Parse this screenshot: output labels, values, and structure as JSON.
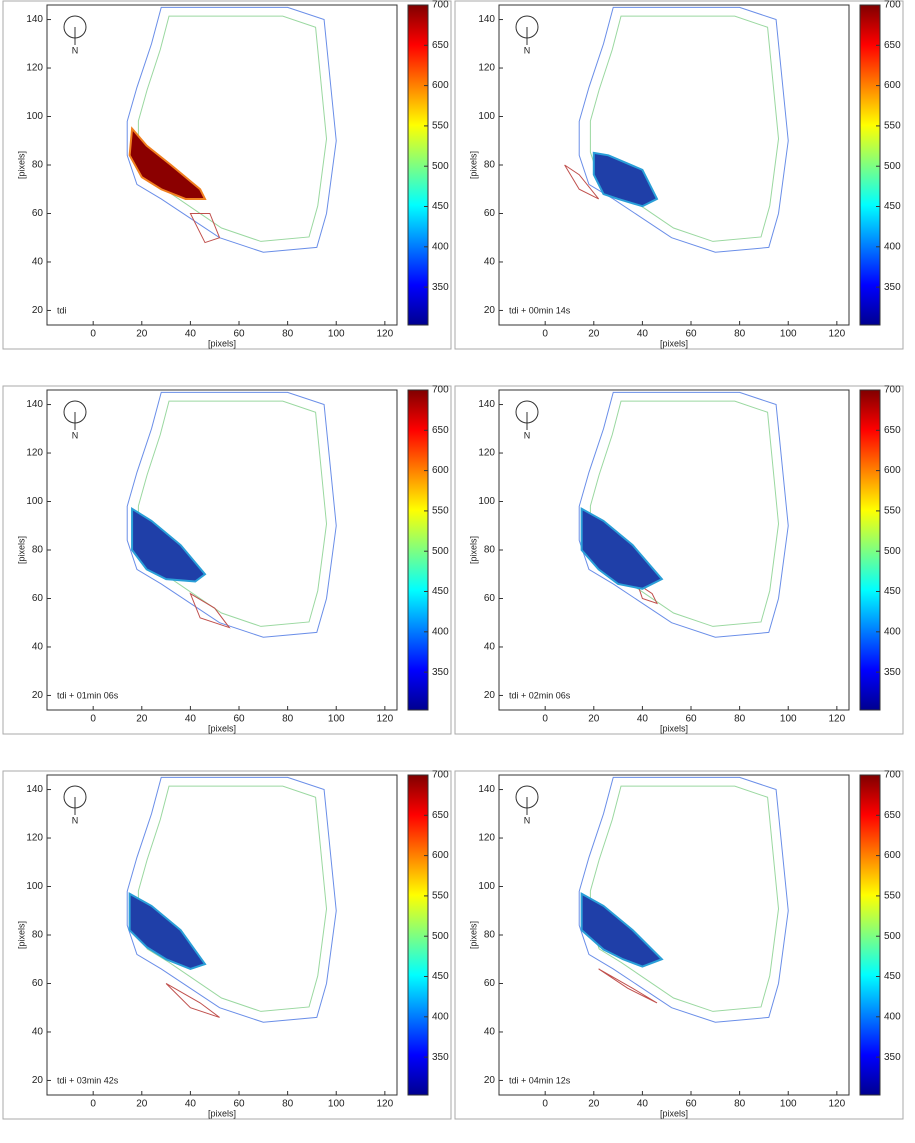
{
  "chart_data": [
    {
      "type": "contour",
      "annotation": "tdi",
      "compass": "N",
      "xlabel": "[pixels]",
      "ylabel": "[pixels]",
      "xlim": [
        -19,
        125
      ],
      "ylim": [
        14,
        146
      ],
      "xticks": [
        0,
        20,
        40,
        60,
        80,
        100,
        120
      ],
      "yticks": [
        20,
        40,
        60,
        80,
        100,
        120,
        140
      ],
      "clim": [
        303,
        700
      ],
      "cticks": [
        350,
        400,
        450,
        500,
        550,
        600,
        650,
        700
      ]
    },
    {
      "type": "contour",
      "annotation": "tdi + 00min 14s",
      "compass": "N",
      "xlabel": "[pixels]",
      "ylabel": "[pixels]",
      "xlim": [
        -19,
        125
      ],
      "ylim": [
        14,
        146
      ],
      "xticks": [
        0,
        20,
        40,
        60,
        80,
        100,
        120
      ],
      "yticks": [
        20,
        40,
        60,
        80,
        100,
        120,
        140
      ],
      "clim": [
        303,
        700
      ],
      "cticks": [
        350,
        400,
        450,
        500,
        550,
        600,
        650,
        700
      ]
    },
    {
      "type": "contour",
      "annotation": "tdi + 01min 06s",
      "compass": "N",
      "xlabel": "[pixels]",
      "ylabel": "[pixels]",
      "xlim": [
        -19,
        125
      ],
      "ylim": [
        14,
        146
      ],
      "xticks": [
        0,
        20,
        40,
        60,
        80,
        100,
        120
      ],
      "yticks": [
        20,
        40,
        60,
        80,
        100,
        120,
        140
      ],
      "clim": [
        303,
        700
      ],
      "cticks": [
        350,
        400,
        450,
        500,
        550,
        600,
        650,
        700
      ]
    },
    {
      "type": "contour",
      "annotation": "tdi + 02min 06s",
      "compass": "N",
      "xlabel": "[pixels]",
      "ylabel": "[pixels]",
      "xlim": [
        -19,
        125
      ],
      "ylim": [
        14,
        146
      ],
      "xticks": [
        0,
        20,
        40,
        60,
        80,
        100,
        120
      ],
      "yticks": [
        20,
        40,
        60,
        80,
        100,
        120,
        140
      ],
      "clim": [
        303,
        700
      ],
      "cticks": [
        350,
        400,
        450,
        500,
        550,
        600,
        650,
        700
      ]
    },
    {
      "type": "contour",
      "annotation": "tdi + 03min 42s",
      "compass": "N",
      "xlabel": "[pixels]",
      "ylabel": "[pixels]",
      "xlim": [
        -19,
        125
      ],
      "ylim": [
        14,
        146
      ],
      "xticks": [
        0,
        20,
        40,
        60,
        80,
        100,
        120
      ],
      "yticks": [
        20,
        40,
        60,
        80,
        100,
        120,
        140
      ],
      "clim": [
        303,
        700
      ],
      "cticks": [
        350,
        400,
        450,
        500,
        550,
        600,
        650,
        700
      ]
    },
    {
      "type": "contour",
      "annotation": "tdi + 04min 12s",
      "compass": "N",
      "xlabel": "[pixels]",
      "ylabel": "[pixels]",
      "xlim": [
        -19,
        125
      ],
      "ylim": [
        14,
        146
      ],
      "xticks": [
        0,
        20,
        40,
        60,
        80,
        100,
        120
      ],
      "yticks": [
        20,
        40,
        60,
        80,
        100,
        120,
        140
      ],
      "clim": [
        303,
        700
      ],
      "cticks": [
        350,
        400,
        450,
        500,
        550,
        600,
        650,
        700
      ]
    }
  ]
}
